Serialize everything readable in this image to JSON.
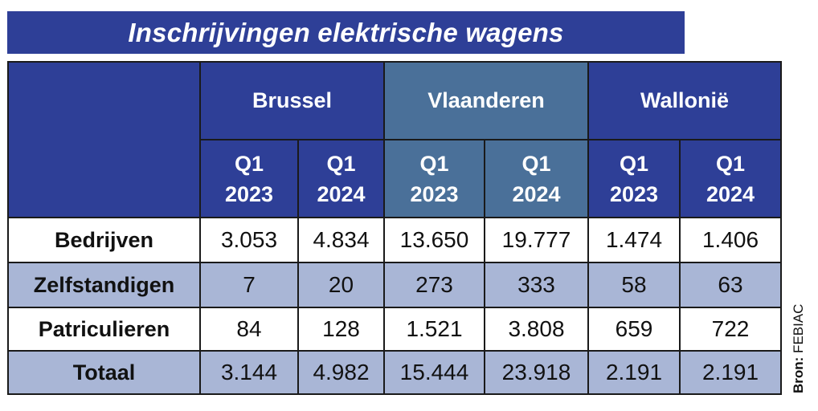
{
  "title": "Inschrijvingen elektrische wagens",
  "regions": [
    "Brussel",
    "Vlaanderen",
    "Wallonië"
  ],
  "quarter_label": "Q1",
  "years": [
    "2023",
    "2024"
  ],
  "rows": [
    {
      "label": "Bedrijven",
      "values": [
        "3.053",
        "4.834",
        "13.650",
        "19.777",
        "1.474",
        "1.406"
      ]
    },
    {
      "label": "Zelfstandigen",
      "values": [
        "7",
        "20",
        "273",
        "333",
        "58",
        "63"
      ]
    },
    {
      "label": "Patriculieren",
      "values": [
        "84",
        "128",
        "1.521",
        "3.808",
        "659",
        "722"
      ]
    },
    {
      "label": "Totaal",
      "values": [
        "3.144",
        "4.982",
        "15.444",
        "23.918",
        "2.191",
        "2.191"
      ]
    }
  ],
  "source_prefix": "Bron:",
  "source_name": "FEBIAC",
  "colors": {
    "header": "#2e3f97",
    "header_highlight": "#4a7099",
    "row_alt": "#a9b6d6"
  }
}
